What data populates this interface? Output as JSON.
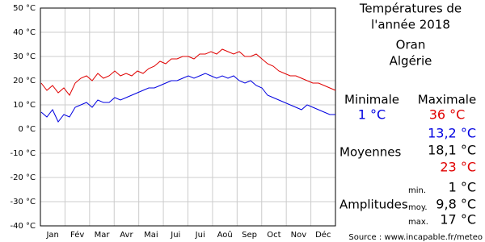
{
  "chart_data": {
    "type": "line",
    "title": [
      "Températures de",
      "l'année 2018"
    ],
    "location": [
      "Oran",
      "Algérie"
    ],
    "categories": [
      "Jan",
      "Fév",
      "Mar",
      "Avr",
      "Mai",
      "Jui",
      "Jui",
      "Aoû",
      "Sep",
      "Oct",
      "Nov",
      "Déc"
    ],
    "x": [
      1,
      8,
      15,
      22,
      29,
      36,
      43,
      50,
      57,
      64,
      71,
      78,
      85,
      92,
      99,
      106,
      113,
      120,
      127,
      134,
      141,
      148,
      155,
      162,
      169,
      176,
      183,
      190,
      197,
      204,
      211,
      218,
      225,
      232,
      239,
      246,
      253,
      260,
      267,
      274,
      281,
      288,
      295,
      302,
      309,
      316,
      323,
      330,
      337,
      344,
      351,
      358,
      365
    ],
    "xlim": [
      0,
      365
    ],
    "ylim": [
      -40,
      50
    ],
    "yticks": [
      {
        "value": -40,
        "label": "-40 °C"
      },
      {
        "value": -30,
        "label": "-30 °C"
      },
      {
        "value": -20,
        "label": "-20 °C"
      },
      {
        "value": -10,
        "label": "-10 °C"
      },
      {
        "value": 0,
        "label": "0 °C"
      },
      {
        "value": 10,
        "label": "10 °C"
      },
      {
        "value": 20,
        "label": "20 °C"
      },
      {
        "value": 30,
        "label": "30 °C"
      },
      {
        "value": 40,
        "label": "40 °C"
      },
      {
        "value": 50,
        "label": "50 °C"
      }
    ],
    "grid": true,
    "series": [
      {
        "name": "Maximale",
        "color": "#e00000",
        "values": [
          19,
          16,
          18,
          15,
          17,
          14,
          19,
          21,
          22,
          20,
          23,
          21,
          22,
          24,
          22,
          23,
          22,
          24,
          23,
          25,
          26,
          28,
          27,
          29,
          29,
          30,
          30,
          29,
          31,
          31,
          32,
          31,
          33,
          32,
          31,
          32,
          30,
          30,
          31,
          29,
          27,
          26,
          24,
          23,
          22,
          22,
          21,
          20,
          19,
          19,
          18,
          17,
          16
        ]
      },
      {
        "name": "Minimale",
        "color": "#0000e0",
        "values": [
          7,
          5,
          8,
          3,
          6,
          5,
          9,
          10,
          11,
          9,
          12,
          11,
          11,
          13,
          12,
          13,
          14,
          15,
          16,
          17,
          17,
          18,
          19,
          20,
          20,
          21,
          22,
          21,
          22,
          23,
          22,
          21,
          22,
          21,
          22,
          20,
          19,
          20,
          18,
          17,
          14,
          13,
          12,
          11,
          10,
          9,
          8,
          10,
          9,
          8,
          7,
          6,
          6
        ]
      }
    ],
    "stats": {
      "min_label": "Minimale",
      "max_label": "Maximale",
      "min_value": "1 °C",
      "max_value": "36 °C",
      "mean_label": "Moyennes",
      "mean_min": "13,2 °C",
      "mean": "18,1 °C",
      "mean_max": "23 °C",
      "amp_label": "Amplitudes",
      "amp_min_label": "min.",
      "amp_min": "1 °C",
      "amp_mean_label": "moy.",
      "amp_mean": "9,8 °C",
      "amp_max_label": "max.",
      "amp_max": "17 °C"
    },
    "source": "Source : www.incapable.fr/meteo"
  }
}
